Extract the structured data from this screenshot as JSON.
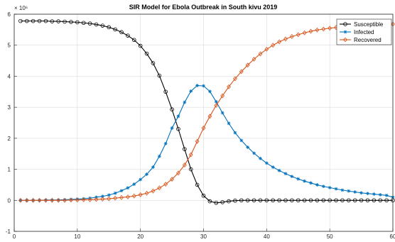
{
  "chart_data": {
    "type": "line",
    "title": "SIR Model for Ebola Outbreak in South kivu 2019",
    "xlabel": "",
    "ylabel": "",
    "y_multiplier_label": "× 10⁶",
    "xlim": [
      0,
      60
    ],
    "ylim": [
      -1,
      6
    ],
    "x_ticks": [
      0,
      10,
      20,
      30,
      40,
      50,
      60
    ],
    "y_ticks": [
      -1,
      0,
      1,
      2,
      3,
      4,
      5,
      6
    ],
    "grid": true,
    "legend_position": "top-right",
    "x": [
      1,
      2,
      3,
      4,
      5,
      6,
      7,
      8,
      9,
      10,
      11,
      12,
      13,
      14,
      15,
      16,
      17,
      18,
      19,
      20,
      21,
      22,
      23,
      24,
      25,
      26,
      27,
      28,
      29,
      30,
      31,
      32,
      33,
      34,
      35,
      36,
      37,
      38,
      39,
      40,
      41,
      42,
      43,
      44,
      45,
      46,
      47,
      48,
      49,
      50,
      51,
      52,
      53,
      54,
      55,
      56,
      57,
      58,
      59,
      60
    ],
    "series": [
      {
        "name": "Susceptible",
        "color": "#000000",
        "marker": "circle",
        "values": [
          5.78,
          5.78,
          5.78,
          5.78,
          5.78,
          5.77,
          5.77,
          5.76,
          5.75,
          5.74,
          5.72,
          5.7,
          5.67,
          5.63,
          5.58,
          5.51,
          5.42,
          5.31,
          5.17,
          4.98,
          4.73,
          4.42,
          4.02,
          3.5,
          2.93,
          2.3,
          1.65,
          1.0,
          0.5,
          0.15,
          -0.03,
          -0.08,
          -0.06,
          -0.03,
          -0.01,
          0,
          0,
          0,
          0,
          0,
          0,
          0,
          0,
          0,
          0,
          0,
          0,
          0,
          0,
          0,
          0,
          0,
          0,
          0,
          0,
          0,
          0,
          0,
          0,
          0
        ]
      },
      {
        "name": "Infected",
        "color": "#0072BD",
        "marker": "asterisk",
        "values": [
          0.0,
          0.0,
          0.0,
          0.0,
          0.01,
          0.01,
          0.01,
          0.02,
          0.03,
          0.04,
          0.05,
          0.07,
          0.1,
          0.13,
          0.17,
          0.23,
          0.31,
          0.4,
          0.52,
          0.67,
          0.84,
          1.07,
          1.42,
          1.83,
          2.33,
          2.71,
          3.16,
          3.52,
          3.7,
          3.69,
          3.51,
          3.18,
          2.82,
          2.48,
          2.18,
          1.93,
          1.71,
          1.52,
          1.35,
          1.2,
          1.07,
          0.96,
          0.86,
          0.77,
          0.69,
          0.62,
          0.56,
          0.5,
          0.45,
          0.41,
          0.37,
          0.33,
          0.3,
          0.27,
          0.24,
          0.22,
          0.2,
          0.18,
          0.16,
          0.1
        ]
      },
      {
        "name": "Recovered",
        "color": "#D95319",
        "marker": "diamond",
        "values": [
          0.0,
          0.0,
          0.0,
          0.0,
          0.0,
          0.0,
          0.0,
          0.0,
          0.01,
          0.01,
          0.02,
          0.02,
          0.03,
          0.04,
          0.05,
          0.07,
          0.09,
          0.11,
          0.14,
          0.18,
          0.23,
          0.3,
          0.4,
          0.52,
          0.68,
          0.88,
          1.14,
          1.47,
          1.9,
          2.33,
          2.71,
          3.06,
          3.37,
          3.66,
          3.92,
          4.15,
          4.36,
          4.55,
          4.72,
          4.87,
          5.0,
          5.11,
          5.2,
          5.28,
          5.34,
          5.4,
          5.45,
          5.49,
          5.52,
          5.55,
          5.57,
          5.59,
          5.61,
          5.62,
          5.63,
          5.64,
          5.65,
          5.66,
          5.67,
          5.68
        ]
      }
    ]
  }
}
